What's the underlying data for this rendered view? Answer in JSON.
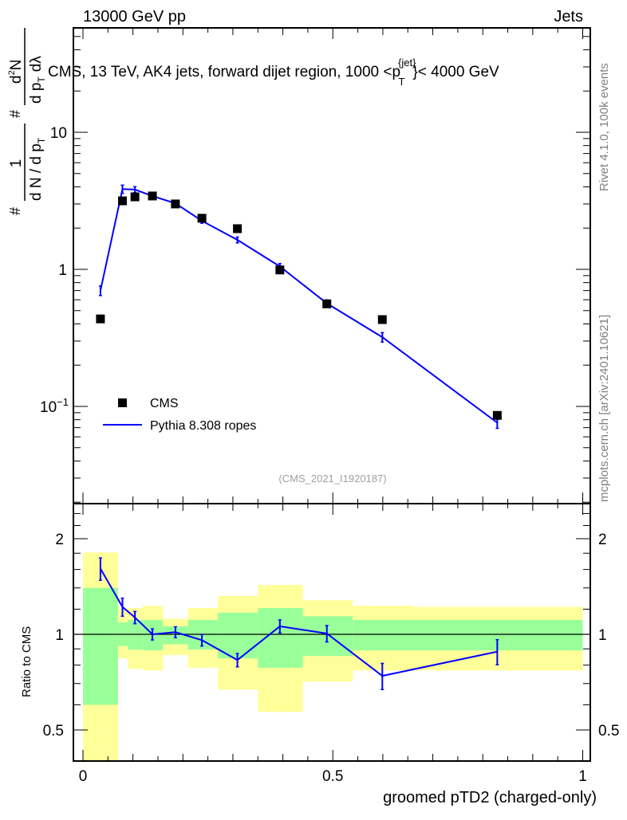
{
  "header": {
    "left": "13000 GeV pp",
    "right": "Jets"
  },
  "side_labels": {
    "rivet": "Rivet 4.1.0,  100k events",
    "mcplots": "mcplots.cern.ch [arXiv:2401.10621]"
  },
  "watermark": "(CMS_2021_I1920187)",
  "colors": {
    "data": "#000000",
    "mc": "#0000ff",
    "band1": "#99ff99",
    "band2": "#ffff99"
  },
  "chart_data": [
    {
      "type": "scatter",
      "title": "CMS, 13 TeV, AK4 jets, forward dijet region, 1000 <p_T^{jet}< 4000 GeV",
      "title_parts": {
        "a": "CMS, 13 TeV, AK4 jets, forward dijet region, 1000 <p",
        "sup": "{jet}",
        "sub": "T",
        "b": "}< 4000 GeV"
      },
      "ylabel_parts": {
        "hash1": "#",
        "one": "1",
        "den1": "d N / d p",
        "sub": "T",
        "hash2": "#",
        "num2": "d",
        "sup2": "2",
        "num2b": "N",
        "den2": "d p",
        "den2b": "d",
        "lambda": "λ"
      },
      "yscale": "log",
      "ylim": [
        0.0195,
        57
      ],
      "xlim": [
        -0.02,
        1.015
      ],
      "yticks": [
        {
          "v": 0.1,
          "label": "10",
          "sup": "−1"
        },
        {
          "v": 1,
          "label": "1",
          "sup": ""
        },
        {
          "v": 10,
          "label": "10",
          "sup": ""
        }
      ],
      "legend": {
        "placement": "bottom-left",
        "entries": [
          "CMS",
          "Pythia 8.308 ropes"
        ]
      },
      "x": [
        0.035,
        0.079,
        0.104,
        0.139,
        0.185,
        0.238,
        0.309,
        0.394,
        0.488,
        0.599,
        0.829
      ],
      "series": [
        {
          "name": "CMS",
          "values": [
            0.435,
            3.16,
            3.38,
            3.43,
            3.0,
            2.36,
            1.98,
            0.99,
            0.56,
            0.43,
            0.086
          ]
        },
        {
          "name": "Pythia 8.308 ropes",
          "values": [
            0.7,
            3.85,
            3.82,
            3.43,
            3.03,
            2.26,
            1.64,
            1.05,
            0.565,
            0.32,
            0.076
          ],
          "rel_err": [
            0.08,
            0.07,
            0.05,
            0.04,
            0.04,
            0.04,
            0.05,
            0.05,
            0.06,
            0.08,
            0.09
          ]
        }
      ]
    },
    {
      "type": "line",
      "ylabel": "Ratio to CMS",
      "xlabel": "groomed pTD2 (charged-only)",
      "yscale": "log",
      "ylim": [
        0.4,
        2.58
      ],
      "xticks": [
        {
          "v": 0,
          "label": "0"
        },
        {
          "v": 0.5,
          "label": "0.5"
        },
        {
          "v": 1,
          "label": "1"
        }
      ],
      "yticks": [
        {
          "v": 0.5,
          "label": "0.5"
        },
        {
          "v": 1,
          "label": "1"
        },
        {
          "v": 2,
          "label": "2"
        }
      ],
      "bin_edges": [
        0,
        0.07,
        0.09,
        0.12,
        0.16,
        0.21,
        0.27,
        0.35,
        0.44,
        0.54,
        0.66,
        1.0
      ],
      "band_1sigma": [
        [
          0.6,
          1.4
        ],
        [
          0.92,
          1.09
        ],
        [
          0.895,
          1.11
        ],
        [
          0.89,
          1.11
        ],
        [
          0.93,
          1.06
        ],
        [
          0.895,
          1.11
        ],
        [
          0.84,
          1.17
        ],
        [
          0.785,
          1.21
        ],
        [
          0.855,
          1.14
        ],
        [
          0.89,
          1.11
        ],
        [
          0.89,
          1.11
        ]
      ],
      "band_2sigma": [
        [
          0.38,
          1.81
        ],
        [
          0.84,
          1.205
        ],
        [
          0.78,
          1.21
        ],
        [
          0.77,
          1.23
        ],
        [
          0.86,
          1.12
        ],
        [
          0.785,
          1.21
        ],
        [
          0.67,
          1.32
        ],
        [
          0.57,
          1.43
        ],
        [
          0.71,
          1.28
        ],
        [
          0.77,
          1.23
        ],
        [
          0.77,
          1.22
        ]
      ],
      "x": [
        0.035,
        0.079,
        0.104,
        0.139,
        0.185,
        0.238,
        0.309,
        0.394,
        0.488,
        0.599,
        0.829
      ],
      "ratio": [
        1.61,
        1.22,
        1.13,
        1.0,
        1.016,
        0.959,
        0.83,
        1.06,
        1.006,
        0.74,
        0.882
      ],
      "ratio_err": [
        0.13,
        0.08,
        0.05,
        0.04,
        0.04,
        0.04,
        0.04,
        0.05,
        0.06,
        0.07,
        0.08
      ]
    }
  ]
}
